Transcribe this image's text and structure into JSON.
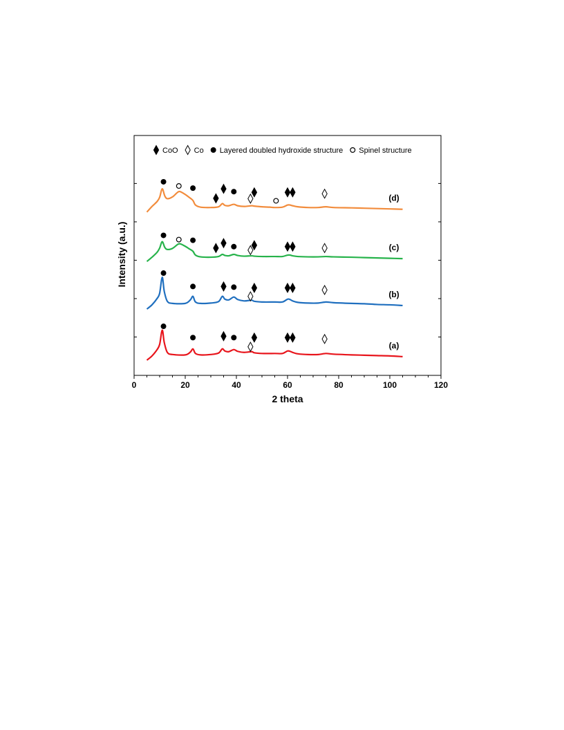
{
  "chart_data": {
    "type": "line",
    "xlabel": "2 theta",
    "ylabel": "Intensity (a.u.)",
    "xlim": [
      0,
      120
    ],
    "x_ticks": [
      "0",
      "20",
      "40",
      "60",
      "80",
      "100",
      "120"
    ],
    "y_tick_labels": "none",
    "grid": false,
    "legend_position": "top",
    "legend": [
      {
        "symbol": "filled-diamond",
        "label": "CoO"
      },
      {
        "symbol": "open-diamond",
        "label": "Co"
      },
      {
        "symbol": "filled-circle",
        "label": "Layered doubled hydroxide structure"
      },
      {
        "symbol": "open-circle",
        "label": "Spinel structure"
      }
    ],
    "series": [
      {
        "name": "(a)",
        "color": "#e8141b",
        "offset": 0,
        "points": [
          [
            5,
            0.0
          ],
          [
            7,
            1.2
          ],
          [
            9,
            3.0
          ],
          [
            10,
            4.5
          ],
          [
            11,
            8.5
          ],
          [
            11.8,
            5.0
          ],
          [
            13,
            2.2
          ],
          [
            15,
            1.6
          ],
          [
            20,
            1.5
          ],
          [
            22,
            2.3
          ],
          [
            23,
            3.2
          ],
          [
            24,
            1.9
          ],
          [
            26,
            1.5
          ],
          [
            30,
            1.6
          ],
          [
            33,
            2.0
          ],
          [
            34.5,
            3.2
          ],
          [
            35.5,
            2.6
          ],
          [
            37,
            2.4
          ],
          [
            39,
            3.0
          ],
          [
            40.5,
            2.5
          ],
          [
            43,
            2.2
          ],
          [
            46,
            2.4
          ],
          [
            47,
            2.1
          ],
          [
            50,
            1.9
          ],
          [
            55,
            1.9
          ],
          [
            58,
            1.9
          ],
          [
            60,
            2.6
          ],
          [
            61,
            2.5
          ],
          [
            62,
            2.2
          ],
          [
            64,
            1.8
          ],
          [
            68,
            1.6
          ],
          [
            72,
            1.6
          ],
          [
            75,
            1.9
          ],
          [
            78,
            1.7
          ],
          [
            85,
            1.5
          ],
          [
            90,
            1.4
          ],
          [
            95,
            1.3
          ],
          [
            100,
            1.2
          ],
          [
            105,
            1.0
          ]
        ],
        "markers": [
          {
            "symbol": "filled-circle",
            "x": 11.5,
            "y": 9.6
          },
          {
            "symbol": "filled-circle",
            "x": 23,
            "y": 6.4
          },
          {
            "symbol": "filled-diamond",
            "x": 35,
            "y": 6.8
          },
          {
            "symbol": "filled-circle",
            "x": 39,
            "y": 6.4
          },
          {
            "symbol": "filled-diamond",
            "x": 47,
            "y": 6.4
          },
          {
            "symbol": "open-diamond",
            "x": 45.5,
            "y": 3.8
          },
          {
            "symbol": "filled-diamond",
            "x": 60,
            "y": 6.4
          },
          {
            "symbol": "filled-diamond",
            "x": 62,
            "y": 6.4
          },
          {
            "symbol": "open-diamond",
            "x": 74.5,
            "y": 6.0
          }
        ]
      },
      {
        "name": "(b)",
        "color": "#1f6fbf",
        "offset": 14.5,
        "points": [
          [
            5,
            0.0
          ],
          [
            7,
            1.2
          ],
          [
            9,
            3.0
          ],
          [
            10,
            4.5
          ],
          [
            11,
            9.0
          ],
          [
            11.8,
            5.0
          ],
          [
            13,
            2.2
          ],
          [
            15,
            1.6
          ],
          [
            20,
            1.6
          ],
          [
            22,
            2.6
          ],
          [
            23,
            3.6
          ],
          [
            24,
            2.0
          ],
          [
            26,
            1.6
          ],
          [
            30,
            1.7
          ],
          [
            33,
            2.1
          ],
          [
            34.5,
            3.6
          ],
          [
            35.5,
            2.8
          ],
          [
            37,
            2.6
          ],
          [
            39,
            3.4
          ],
          [
            40.5,
            2.7
          ],
          [
            43,
            2.3
          ],
          [
            46,
            2.5
          ],
          [
            47,
            2.2
          ],
          [
            50,
            2.0
          ],
          [
            55,
            2.0
          ],
          [
            58,
            2.0
          ],
          [
            60,
            2.8
          ],
          [
            61,
            2.7
          ],
          [
            62,
            2.3
          ],
          [
            64,
            1.9
          ],
          [
            68,
            1.7
          ],
          [
            72,
            1.7
          ],
          [
            75,
            2.0
          ],
          [
            78,
            1.8
          ],
          [
            85,
            1.6
          ],
          [
            90,
            1.5
          ],
          [
            95,
            1.3
          ],
          [
            100,
            1.2
          ],
          [
            105,
            1.0
          ]
        ],
        "markers": [
          {
            "symbol": "filled-circle",
            "x": 11.5,
            "y": 10.2
          },
          {
            "symbol": "filled-circle",
            "x": 23,
            "y": 6.4
          },
          {
            "symbol": "filled-diamond",
            "x": 35,
            "y": 6.4
          },
          {
            "symbol": "filled-circle",
            "x": 39,
            "y": 6.2
          },
          {
            "symbol": "filled-diamond",
            "x": 47,
            "y": 6.0
          },
          {
            "symbol": "open-diamond",
            "x": 45.5,
            "y": 3.6
          },
          {
            "symbol": "filled-diamond",
            "x": 60,
            "y": 6.0
          },
          {
            "symbol": "filled-diamond",
            "x": 62,
            "y": 6.0
          },
          {
            "symbol": "open-diamond",
            "x": 74.5,
            "y": 5.4
          }
        ]
      },
      {
        "name": "(c)",
        "color": "#27b34b",
        "offset": 28,
        "points": [
          [
            5,
            0.0
          ],
          [
            7,
            1.2
          ],
          [
            9,
            2.6
          ],
          [
            10,
            3.8
          ],
          [
            11,
            5.6
          ],
          [
            12,
            4.0
          ],
          [
            13,
            3.4
          ],
          [
            15,
            3.7
          ],
          [
            17,
            4.8
          ],
          [
            18,
            5.0
          ],
          [
            20,
            4.3
          ],
          [
            21.5,
            3.6
          ],
          [
            23,
            2.9
          ],
          [
            24,
            1.8
          ],
          [
            26,
            1.3
          ],
          [
            30,
            1.2
          ],
          [
            33,
            1.4
          ],
          [
            34.5,
            2.0
          ],
          [
            35.5,
            1.7
          ],
          [
            37,
            1.6
          ],
          [
            39,
            2.0
          ],
          [
            40.5,
            1.7
          ],
          [
            43,
            1.5
          ],
          [
            46,
            1.6
          ],
          [
            47,
            1.5
          ],
          [
            50,
            1.4
          ],
          [
            55,
            1.4
          ],
          [
            58,
            1.4
          ],
          [
            60,
            1.8
          ],
          [
            61,
            1.8
          ],
          [
            62,
            1.6
          ],
          [
            64,
            1.4
          ],
          [
            68,
            1.3
          ],
          [
            72,
            1.3
          ],
          [
            75,
            1.4
          ],
          [
            78,
            1.3
          ],
          [
            85,
            1.2
          ],
          [
            90,
            1.1
          ],
          [
            95,
            1.0
          ],
          [
            100,
            0.9
          ],
          [
            105,
            0.8
          ]
        ],
        "markers": [
          {
            "symbol": "filled-circle",
            "x": 11.5,
            "y": 7.4
          },
          {
            "symbol": "open-circle",
            "x": 17.5,
            "y": 6.2
          },
          {
            "symbol": "filled-circle",
            "x": 23,
            "y": 6.0
          },
          {
            "symbol": "filled-diamond",
            "x": 32,
            "y": 3.8
          },
          {
            "symbol": "filled-diamond",
            "x": 35,
            "y": 5.2
          },
          {
            "symbol": "filled-circle",
            "x": 39,
            "y": 4.2
          },
          {
            "symbol": "filled-diamond",
            "x": 47,
            "y": 4.6
          },
          {
            "symbol": "open-diamond",
            "x": 45.5,
            "y": 3.2
          },
          {
            "symbol": "filled-diamond",
            "x": 60,
            "y": 4.2
          },
          {
            "symbol": "filled-diamond",
            "x": 62,
            "y": 4.2
          },
          {
            "symbol": "open-diamond",
            "x": 74.5,
            "y": 3.8
          }
        ]
      },
      {
        "name": "(d)",
        "color": "#f28c3c",
        "offset": 42,
        "points": [
          [
            5,
            0.0
          ],
          [
            7,
            1.6
          ],
          [
            9,
            3.0
          ],
          [
            10,
            4.2
          ],
          [
            11,
            6.6
          ],
          [
            12,
            4.6
          ],
          [
            13,
            3.8
          ],
          [
            15,
            4.3
          ],
          [
            17,
            5.6
          ],
          [
            18,
            5.8
          ],
          [
            20,
            5.0
          ],
          [
            21.5,
            4.2
          ],
          [
            23,
            3.3
          ],
          [
            24,
            2.0
          ],
          [
            26,
            1.4
          ],
          [
            30,
            1.3
          ],
          [
            33,
            1.5
          ],
          [
            34.5,
            2.4
          ],
          [
            35.5,
            1.9
          ],
          [
            37,
            1.8
          ],
          [
            39,
            2.2
          ],
          [
            40.5,
            1.8
          ],
          [
            43,
            1.6
          ],
          [
            46,
            1.8
          ],
          [
            47,
            1.7
          ],
          [
            50,
            1.5
          ],
          [
            53,
            1.4
          ],
          [
            55,
            1.3
          ],
          [
            58,
            1.4
          ],
          [
            60,
            2.0
          ],
          [
            61,
            2.0
          ],
          [
            62,
            1.8
          ],
          [
            64,
            1.5
          ],
          [
            68,
            1.3
          ],
          [
            72,
            1.3
          ],
          [
            75,
            1.5
          ],
          [
            78,
            1.3
          ],
          [
            85,
            1.2
          ],
          [
            90,
            1.1
          ],
          [
            95,
            1.0
          ],
          [
            100,
            0.9
          ],
          [
            105,
            0.8
          ]
        ],
        "markers": [
          {
            "symbol": "filled-circle",
            "x": 11.5,
            "y": 8.6
          },
          {
            "symbol": "open-circle",
            "x": 17.5,
            "y": 7.4
          },
          {
            "symbol": "filled-circle",
            "x": 23,
            "y": 6.8
          },
          {
            "symbol": "filled-diamond",
            "x": 32,
            "y": 3.9
          },
          {
            "symbol": "filled-diamond",
            "x": 35,
            "y": 6.6
          },
          {
            "symbol": "filled-circle",
            "x": 39,
            "y": 5.8
          },
          {
            "symbol": "filled-diamond",
            "x": 47,
            "y": 5.6
          },
          {
            "symbol": "open-diamond",
            "x": 45.5,
            "y": 3.8
          },
          {
            "symbol": "open-circle",
            "x": 55.5,
            "y": 3.2
          },
          {
            "symbol": "filled-diamond",
            "x": 60,
            "y": 5.6
          },
          {
            "symbol": "filled-diamond",
            "x": 62,
            "y": 5.6
          },
          {
            "symbol": "open-diamond",
            "x": 74.5,
            "y": 5.2
          }
        ]
      }
    ]
  }
}
